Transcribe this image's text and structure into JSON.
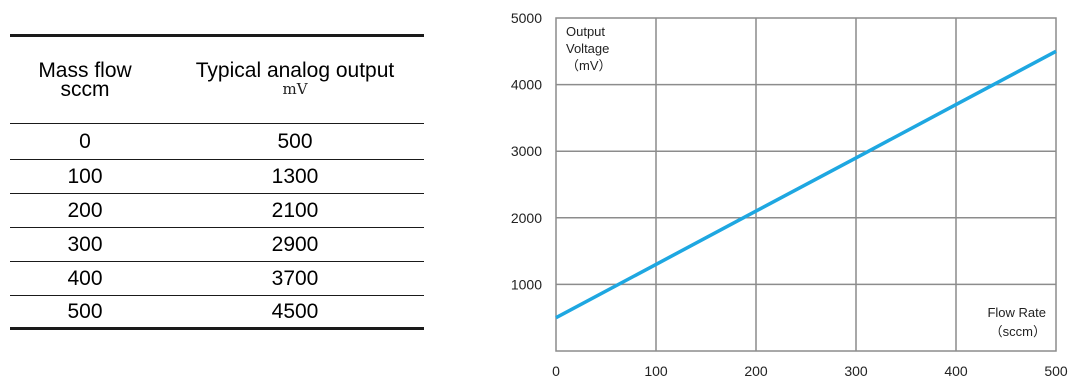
{
  "table": {
    "header": {
      "col1_line1": "Mass flow",
      "col1_line2": "sccm",
      "col2_line1": "Typical analog output",
      "col2_line2": "mV"
    },
    "rows": [
      {
        "flow": "0",
        "output": "500"
      },
      {
        "flow": "100",
        "output": "1300"
      },
      {
        "flow": "200",
        "output": "2100"
      },
      {
        "flow": "300",
        "output": "2900"
      },
      {
        "flow": "400",
        "output": "3700"
      },
      {
        "flow": "500",
        "output": "4500"
      }
    ]
  },
  "chart_data": {
    "type": "line",
    "xlim": [
      0,
      500
    ],
    "ylim": [
      0,
      5000
    ],
    "x_ticks": [
      0,
      100,
      200,
      300,
      400,
      500
    ],
    "y_ticks": [
      1000,
      2000,
      3000,
      4000,
      5000
    ],
    "grid": true,
    "ylabel_lines": [
      "Output",
      "Voltage",
      "（mV）"
    ],
    "xlabel_lines": [
      "Flow Rate",
      "（sccm）"
    ],
    "series": [
      {
        "x": [
          0,
          100,
          200,
          300,
          400,
          500
        ],
        "y": [
          500,
          1300,
          2100,
          2900,
          3700,
          4500
        ],
        "color": "#1ea7e1"
      }
    ]
  }
}
